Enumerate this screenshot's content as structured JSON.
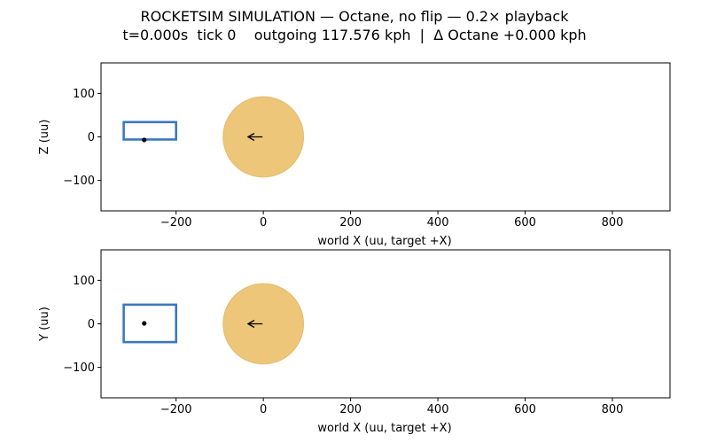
{
  "title": {
    "line1": "ROCKETSIM SIMULATION — Octane, no flip — 0.2× playback",
    "line2": "t=0.000s  tick 0    outgoing 117.576 kph  |  Δ Octane +0.000 kph"
  },
  "colors": {
    "car": "#3a78c0",
    "ball_fill": "#edc67a",
    "ball_edge": "#e6bd70",
    "axes": "#000000"
  },
  "chart_data": [
    {
      "type": "scatter",
      "view": "side",
      "xlabel": "world X (uu, target +X)",
      "ylabel": "Z (uu)",
      "xlim": [
        -372,
        932
      ],
      "ylim": [
        -170,
        170
      ],
      "xticks": [
        -200,
        0,
        200,
        400,
        600,
        800
      ],
      "xtick_labels": [
        "−200",
        "0",
        "200",
        "400",
        "600",
        "800"
      ],
      "yticks": [
        -100,
        0,
        100
      ],
      "ytick_labels": [
        "−100",
        "0",
        "100"
      ],
      "car": {
        "x_min": -320,
        "x_max": -200,
        "y_min": -6,
        "y_max": 34
      },
      "car_origin": {
        "x": -273,
        "y": -7
      },
      "ball": {
        "x": 0,
        "y": 0,
        "radius": 92
      },
      "ball_velocity_arrow": {
        "x_from": -2,
        "x_to": -35,
        "y": 0
      }
    },
    {
      "type": "scatter",
      "view": "top",
      "xlabel": "world X (uu, target +X)",
      "ylabel": "Y (uu)",
      "xlim": [
        -372,
        932
      ],
      "ylim": [
        -170,
        170
      ],
      "xticks": [
        -200,
        0,
        200,
        400,
        600,
        800
      ],
      "xtick_labels": [
        "−200",
        "0",
        "200",
        "400",
        "600",
        "800"
      ],
      "yticks": [
        -100,
        0,
        100
      ],
      "ytick_labels": [
        "−100",
        "0",
        "100"
      ],
      "car": {
        "x_min": -320,
        "x_max": -200,
        "y_min": -42,
        "y_max": 44
      },
      "car_origin": {
        "x": -273,
        "y": 1
      },
      "ball": {
        "x": 0,
        "y": 0,
        "radius": 92
      },
      "ball_velocity_arrow": {
        "x_from": -2,
        "x_to": -35,
        "y": 0
      }
    }
  ]
}
